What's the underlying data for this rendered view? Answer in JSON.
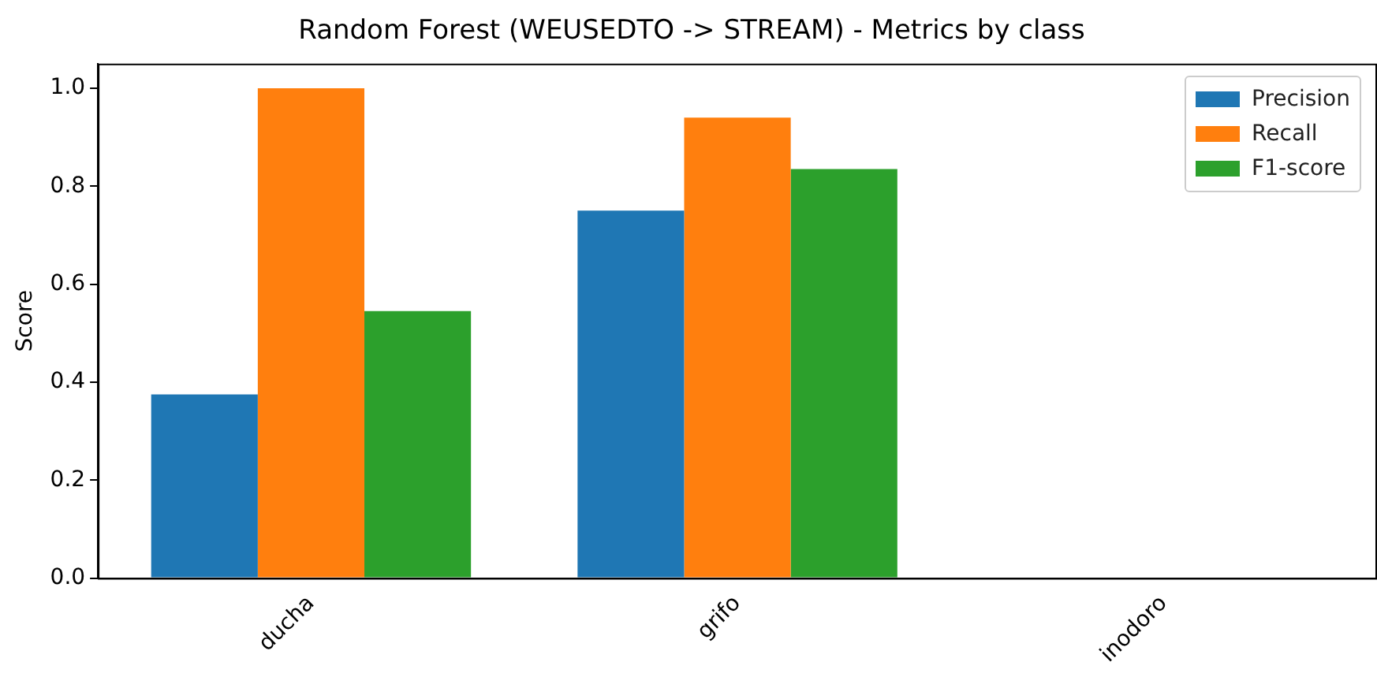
{
  "chart_data": {
    "type": "bar",
    "title": "Random Forest (WEUSEDTO -> STREAM) - Metrics by class",
    "ylabel": "Score",
    "categories": [
      "ducha",
      "grifo",
      "inodoro"
    ],
    "series": [
      {
        "name": "Precision",
        "color": "#1f77b4",
        "values": [
          0.375,
          0.75,
          0
        ]
      },
      {
        "name": "Recall",
        "color": "#ff7f0e",
        "values": [
          1.0,
          0.94,
          0
        ]
      },
      {
        "name": "F1-score",
        "color": "#2ca02c",
        "values": [
          0.545,
          0.835,
          0
        ]
      }
    ],
    "ylim": [
      0,
      1.05
    ],
    "yticks": [
      {
        "value": 0,
        "label": "0.0"
      },
      {
        "value": 0.2,
        "label": "0.2"
      },
      {
        "value": 0.4,
        "label": "0.4"
      },
      {
        "value": 0.6,
        "label": "0.6"
      },
      {
        "value": 0.8,
        "label": "0.8"
      },
      {
        "value": 1,
        "label": "1.0"
      }
    ],
    "grid": false,
    "legend": "top right"
  }
}
